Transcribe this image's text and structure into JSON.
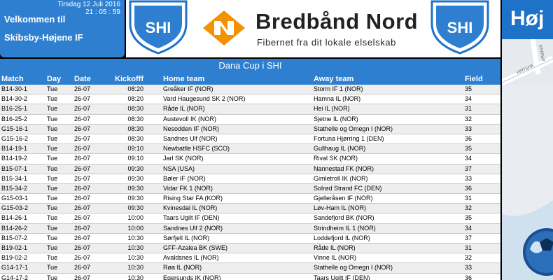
{
  "info": {
    "date": "Tirsdag 12 Juli 2016",
    "time": "21 : 05 : 59",
    "welcome": "Velkommen til",
    "club": "Skibsby-Højene IF"
  },
  "banner": {
    "shield_text": "SHI",
    "brand": "Bredbånd Nord",
    "tagline": "Fibernet fra dit lokale elselskab"
  },
  "map": {
    "title": "Høj",
    "street1": "ASTRUP",
    "street2": "HIRTSHA"
  },
  "schedule": {
    "title": "Dana Cup i SHI",
    "columns": {
      "match": "Match",
      "day": "Day",
      "date": "Date",
      "kickoff": "Kickofff",
      "home": "Home team",
      "away": "Away team",
      "field": "Field"
    },
    "rows": [
      {
        "match": "B14-30-1",
        "day": "Tue",
        "date": "26-07",
        "kickoff": "08:20",
        "home": "Greåker IF (NOR)",
        "away": "Storm IF 1 (NOR)",
        "field": "35"
      },
      {
        "match": "B14-30-2",
        "day": "Tue",
        "date": "26-07",
        "kickoff": "08:20",
        "home": "Vard Haugesund SK 2 (NOR)",
        "away": "Hamna IL (NOR)",
        "field": "34"
      },
      {
        "match": "B16-25-1",
        "day": "Tue",
        "date": "26-07",
        "kickoff": "08:30",
        "home": "Råde IL (NOR)",
        "away": "Hei IL (NOR)",
        "field": "31"
      },
      {
        "match": "B16-25-2",
        "day": "Tue",
        "date": "26-07",
        "kickoff": "08:30",
        "home": "Austevoll IK (NOR)",
        "away": "Sjetne IL (NOR)",
        "field": "32"
      },
      {
        "match": "G15-16-1",
        "day": "Tue",
        "date": "26-07",
        "kickoff": "08:30",
        "home": "Nesodden IF (NOR)",
        "away": "Stathelle og Omegn I (NOR)",
        "field": "33"
      },
      {
        "match": "G15-16-2",
        "day": "Tue",
        "date": "26-07",
        "kickoff": "08:30",
        "home": "Sandnes Ulf (NOR)",
        "away": "Fortuna Hjørring 1 (DEN)",
        "field": "36"
      },
      {
        "match": "B14-19-1",
        "day": "Tue",
        "date": "26-07",
        "kickoff": "09:10",
        "home": "Newbattle HSFC (SCO)",
        "away": "Gullhaug IL (NOR)",
        "field": "35"
      },
      {
        "match": "B14-19-2",
        "day": "Tue",
        "date": "26-07",
        "kickoff": "09:10",
        "home": "Jarl SK (NOR)",
        "away": "Rival SK (NOR)",
        "field": "34"
      },
      {
        "match": "B15-07-1",
        "day": "Tue",
        "date": "26-07",
        "kickoff": "09:30",
        "home": "NSA (USA)",
        "away": "Nannestad FK (NOR)",
        "field": "37"
      },
      {
        "match": "B15-34-1",
        "day": "Tue",
        "date": "26-07",
        "kickoff": "09:30",
        "home": "Bøler IF (NOR)",
        "away": "Gimletroll IK (NOR)",
        "field": "33"
      },
      {
        "match": "B15-34-2",
        "day": "Tue",
        "date": "26-07",
        "kickoff": "09:30",
        "home": "Vidar FK 1 (NOR)",
        "away": "Solrød Strand FC (DEN)",
        "field": "36"
      },
      {
        "match": "G15-03-1",
        "day": "Tue",
        "date": "26-07",
        "kickoff": "09:30",
        "home": "Rising Star FA (KOR)",
        "away": "Gjelleråsen IF (NOR)",
        "field": "31"
      },
      {
        "match": "G15-03-2",
        "day": "Tue",
        "date": "26-07",
        "kickoff": "09:30",
        "home": "Kvinesdal IL (NOR)",
        "away": "Løv-Ham IL (NOR)",
        "field": "32"
      },
      {
        "match": "B14-26-1",
        "day": "Tue",
        "date": "26-07",
        "kickoff": "10:00",
        "home": "Taars Ugilt IF (DEN)",
        "away": "Sandefjord BK (NOR)",
        "field": "35"
      },
      {
        "match": "B14-26-2",
        "day": "Tue",
        "date": "26-07",
        "kickoff": "10:00",
        "home": "Sandnes Ulf 2 (NOR)",
        "away": "Strindheim IL 1 (NOR)",
        "field": "34"
      },
      {
        "match": "B15-07-2",
        "day": "Tue",
        "date": "26-07",
        "kickoff": "10:30",
        "home": "Sørfjell IL (NOR)",
        "away": "Loddefjord IL (NOR)",
        "field": "37"
      },
      {
        "match": "B19-02-1",
        "day": "Tue",
        "date": "26-07",
        "kickoff": "10:30",
        "home": "GFF-Azalea BK (SWE)",
        "away": "Råde IL (NOR)",
        "field": "31"
      },
      {
        "match": "B19-02-2",
        "day": "Tue",
        "date": "26-07",
        "kickoff": "10:30",
        "home": "Avaldsnes IL (NOR)",
        "away": "Vinne IL (NOR)",
        "field": "32"
      },
      {
        "match": "G14-17-1",
        "day": "Tue",
        "date": "26-07",
        "kickoff": "10:30",
        "home": "Røa IL (NOR)",
        "away": "Stathelle og Omegn I (NOR)",
        "field": "33"
      },
      {
        "match": "G14-17-2",
        "day": "Tue",
        "date": "26-07",
        "kickoff": "10:30",
        "home": "Egersunds IK (NOR)",
        "away": "Taars Ugilt IF (DEN)",
        "field": "36"
      }
    ]
  },
  "colors": {
    "panel_blue": "#2f7fd0",
    "map_blue": "#1e72c8",
    "brand_orange": "#f39200"
  }
}
